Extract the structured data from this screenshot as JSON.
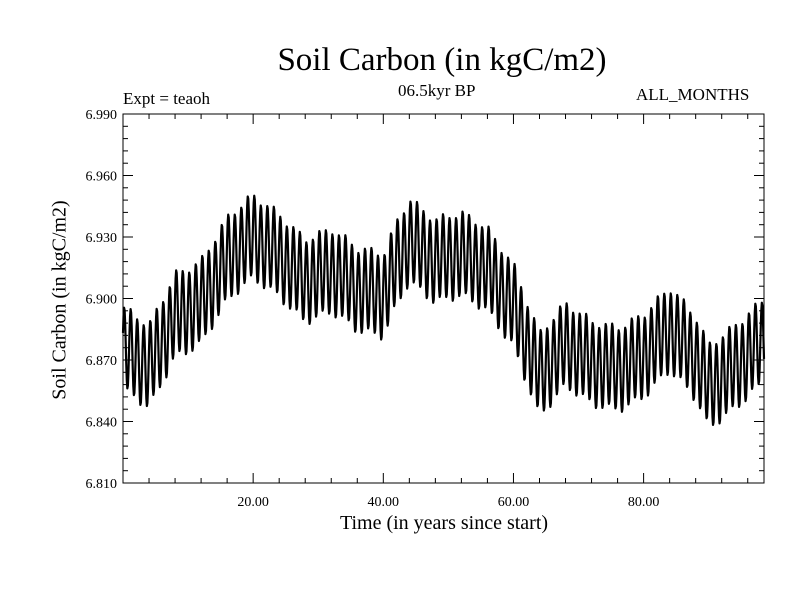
{
  "chart_data": {
    "type": "line",
    "title": "Soil Carbon (in kgC/m2)",
    "subtitle": "06.5kyr BP",
    "left_label": "Expt = teaoh",
    "right_label": "ALL_MONTHS",
    "xlabel": "Time (in years since start)",
    "ylabel": "Soil Carbon (in kgC/m2)",
    "xlim": [
      0.0,
      98.5
    ],
    "ylim": [
      6.81,
      6.99
    ],
    "x_ticks": [
      20,
      40,
      60,
      80
    ],
    "x_tick_labels": [
      "20.00",
      "40.00",
      "60.00",
      "80.00"
    ],
    "y_ticks": [
      6.81,
      6.84,
      6.87,
      6.9,
      6.93,
      6.96,
      6.99
    ],
    "y_tick_labels": [
      "6.810",
      "6.840",
      "6.870",
      "6.900",
      "6.930",
      "6.960",
      "6.990"
    ],
    "seasonal_amplitude": 0.02,
    "baseline_trend": {
      "x": [
        0,
        4,
        8,
        12,
        16,
        20,
        24,
        28,
        32,
        36,
        40,
        42,
        44,
        48,
        52,
        56,
        60,
        64,
        68,
        72,
        76,
        80,
        84,
        88,
        90,
        94,
        98.5
      ],
      "y": [
        6.874,
        6.866,
        6.893,
        6.899,
        6.918,
        6.929,
        6.922,
        6.91,
        6.913,
        6.903,
        6.902,
        6.918,
        6.93,
        6.918,
        6.92,
        6.914,
        6.898,
        6.863,
        6.876,
        6.868,
        6.867,
        6.873,
        6.884,
        6.87,
        6.857,
        6.868,
        6.88
      ]
    },
    "series": [
      {
        "name": "Soil Carbon",
        "color": "#000000",
        "samples_per_year": 12
      }
    ]
  }
}
